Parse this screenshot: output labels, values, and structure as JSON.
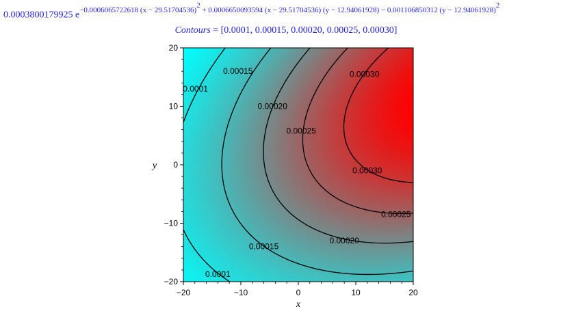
{
  "formula": {
    "coefficient": "0.0003800179925 e",
    "exponent": "−0.0006065722618 (x − 29.51704536)",
    "sq1": "2",
    "cross_term": " + 0.0006650093594 (x − 29.51704536) (y − 12.94061928) − 0.001106850312 (y − 12.94061928)",
    "sq2": "2"
  },
  "contour_heading": {
    "name": "Contours",
    "values_text": " = [0.0001, 0.00015, 0.00020, 0.00025, 0.00030]"
  },
  "chart_data": {
    "type": "heatmap",
    "subtype": "contour",
    "function": {
      "amplitude": 0.0003800179925,
      "x0": 29.51704536,
      "y0": 12.94061928,
      "coef_xx": -0.0006065722618,
      "coef_xy": 0.0006650093594,
      "coef_yy": -0.001106850312
    },
    "contour_levels": [
      0.0001,
      0.00015,
      0.0002,
      0.00025,
      0.0003
    ],
    "contour_labels": [
      {
        "text": "0.0001",
        "x": -17.9,
        "y": 13
      },
      {
        "text": "0.00015",
        "x": -10.5,
        "y": 16
      },
      {
        "text": "0.00020",
        "x": -4.5,
        "y": 10
      },
      {
        "text": "0.00025",
        "x": 0.5,
        "y": 5.8
      },
      {
        "text": "0.00030",
        "x": 11.5,
        "y": 15.5
      },
      {
        "text": "0.00030",
        "x": 12,
        "y": -1
      },
      {
        "text": "0.00025",
        "x": 17,
        "y": -8.5
      },
      {
        "text": "0.00020",
        "x": 8,
        "y": -13
      },
      {
        "text": "0.00015",
        "x": -6,
        "y": -14
      },
      {
        "text": "0.0001",
        "x": -14,
        "y": -18.7
      }
    ],
    "xlim": [
      -20,
      20
    ],
    "ylim": [
      -20,
      20
    ],
    "x_ticks": [
      -20,
      -10,
      0,
      10,
      20
    ],
    "y_ticks": [
      -20,
      -10,
      0,
      10,
      20
    ],
    "x_tick_labels": [
      "−20",
      "−10",
      "0",
      "10",
      "20"
    ],
    "y_tick_labels": [
      "−20",
      "−10",
      "0",
      "10",
      "20"
    ],
    "xlabel": "x",
    "ylabel": "y",
    "colormap": [
      "#00ffff",
      "#808080",
      "#ff0000"
    ],
    "grid": false
  }
}
